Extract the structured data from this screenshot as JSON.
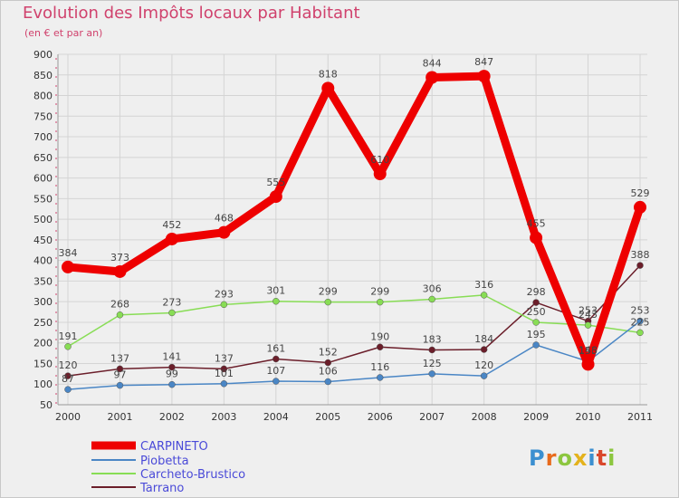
{
  "title": "Evolution des Impôts locaux par Habitant",
  "subtitle": "(en € et par an)",
  "logo": "Proxiti",
  "chart_data": {
    "type": "line",
    "x": [
      "2000",
      "2001",
      "2002",
      "2003",
      "2004",
      "2005",
      "2006",
      "2007",
      "2008",
      "2009",
      "2010",
      "2011"
    ],
    "ylim": [
      50,
      900
    ],
    "yticks": [
      50,
      100,
      150,
      200,
      250,
      300,
      350,
      400,
      450,
      500,
      550,
      600,
      650,
      700,
      750,
      800,
      850,
      900
    ],
    "grid": true,
    "legend": "bottom-left",
    "series": [
      {
        "name": "CARPINETO",
        "color": "#ee0000",
        "values": [
          384,
          373,
          452,
          468,
          555,
          818,
          610,
          844,
          847,
          455,
          148,
          529
        ]
      },
      {
        "name": "Piobetta",
        "color": "#4a86c5",
        "values": [
          87,
          97,
          99,
          101,
          107,
          106,
          116,
          125,
          120,
          195,
          155,
          253
        ]
      },
      {
        "name": "Carcheto-Brustico",
        "color": "#88dd55",
        "values": [
          191,
          268,
          273,
          293,
          301,
          299,
          299,
          306,
          316,
          250,
          243,
          225
        ]
      },
      {
        "name": "Tarrano",
        "color": "#6b1e2a",
        "values": [
          120,
          137,
          141,
          137,
          161,
          152,
          190,
          183,
          184,
          298,
          253,
          388
        ]
      }
    ]
  }
}
